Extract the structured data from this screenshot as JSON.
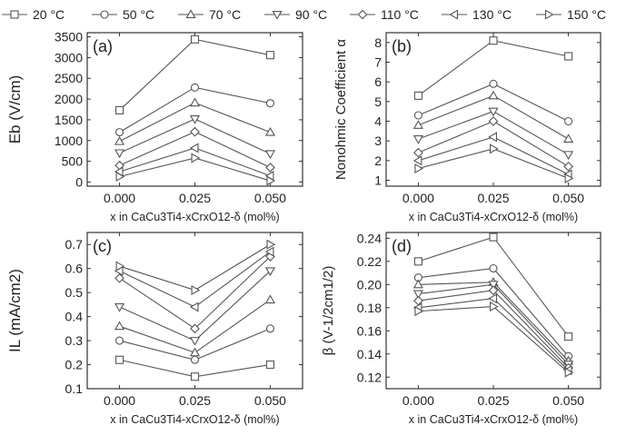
{
  "legend": {
    "entries": [
      {
        "label": "20 °C",
        "marker": "square"
      },
      {
        "label": "50 °C",
        "marker": "circle"
      },
      {
        "label": "70 °C",
        "marker": "triangle-up"
      },
      {
        "label": "90 °C",
        "marker": "triangle-down"
      },
      {
        "label": "110 °C",
        "marker": "diamond"
      },
      {
        "label": "130 °C",
        "marker": "triangle-left"
      },
      {
        "label": "150 °C",
        "marker": "triangle-right"
      }
    ],
    "line_color": "#555555"
  },
  "chart_data": [
    {
      "panel": "(a)",
      "type": "line",
      "x": [
        0.0,
        0.025,
        0.05
      ],
      "xticks": [
        "0.000",
        "0.025",
        "0.050"
      ],
      "xlabel": "x in CaCu3Ti4-xCrxO12-δ (mol%)",
      "ylabel": "Eb (V/cm)",
      "ylim": [
        -100,
        3600
      ],
      "yticks": [
        0,
        500,
        1000,
        1500,
        2000,
        2500,
        3000,
        3500
      ],
      "ytick_labels": [
        "0",
        "500",
        "1000",
        "1500",
        "2000",
        "2500",
        "3000",
        "3500"
      ],
      "series": [
        {
          "name": "20 °C",
          "values": [
            1730,
            3440,
            3060
          ]
        },
        {
          "name": "50 °C",
          "values": [
            1200,
            2280,
            1900
          ]
        },
        {
          "name": "70 °C",
          "values": [
            980,
            1910,
            1200
          ]
        },
        {
          "name": "90 °C",
          "values": [
            700,
            1520,
            680
          ]
        },
        {
          "name": "110 °C",
          "values": [
            400,
            1210,
            350
          ]
        },
        {
          "name": "130 °C",
          "values": [
            250,
            820,
            150
          ]
        },
        {
          "name": "150 °C",
          "values": [
            130,
            580,
            30
          ]
        }
      ]
    },
    {
      "panel": "(b)",
      "type": "line",
      "x": [
        0.0,
        0.025,
        0.05
      ],
      "xticks": [
        "0.000",
        "0.025",
        "0.050"
      ],
      "xlabel": "x in CaCu3Ti4-xCrxO12-δ (mol%)",
      "ylabel": "Nonohmic Coefficient α",
      "ylim": [
        0.7,
        8.5
      ],
      "yticks": [
        1,
        2,
        3,
        4,
        5,
        6,
        7,
        8
      ],
      "ytick_labels": [
        "1",
        "2",
        "3",
        "4",
        "5",
        "6",
        "7",
        "8"
      ],
      "series": [
        {
          "name": "20 °C",
          "values": [
            5.3,
            8.1,
            7.3
          ]
        },
        {
          "name": "50 °C",
          "values": [
            4.3,
            5.9,
            4.0
          ]
        },
        {
          "name": "70 °C",
          "values": [
            3.8,
            5.3,
            3.1
          ]
        },
        {
          "name": "90 °C",
          "values": [
            3.1,
            4.5,
            2.3
          ]
        },
        {
          "name": "110 °C",
          "values": [
            2.4,
            4.0,
            1.7
          ]
        },
        {
          "name": "130 °C",
          "values": [
            2.0,
            3.2,
            1.3
          ]
        },
        {
          "name": "150 °C",
          "values": [
            1.6,
            2.6,
            1.1
          ]
        }
      ]
    },
    {
      "panel": "(c)",
      "type": "line",
      "x": [
        0.0,
        0.025,
        0.05
      ],
      "xticks": [
        "0.000",
        "0.025",
        "0.050"
      ],
      "xlabel": "x in CaCu3Ti4-xCrxO12-δ (mol%)",
      "ylabel": "IL (mA/cm2)",
      "ylim": [
        0.1,
        0.75
      ],
      "yticks": [
        0.1,
        0.2,
        0.3,
        0.4,
        0.5,
        0.6,
        0.7
      ],
      "ytick_labels": [
        "0.1",
        "0.2",
        "0.3",
        "0.4",
        "0.5",
        "0.6",
        "0.7"
      ],
      "series": [
        {
          "name": "20 °C",
          "values": [
            0.22,
            0.15,
            0.2
          ]
        },
        {
          "name": "50 °C",
          "values": [
            0.3,
            0.22,
            0.35
          ]
        },
        {
          "name": "70 °C",
          "values": [
            0.36,
            0.25,
            0.47
          ]
        },
        {
          "name": "90 °C",
          "values": [
            0.44,
            0.3,
            0.59
          ]
        },
        {
          "name": "110 °C",
          "values": [
            0.56,
            0.35,
            0.65
          ]
        },
        {
          "name": "130 °C",
          "values": [
            0.59,
            0.44,
            0.67
          ]
        },
        {
          "name": "150 °C",
          "values": [
            0.61,
            0.51,
            0.7
          ]
        }
      ]
    },
    {
      "panel": "(d)",
      "type": "line",
      "x": [
        0.0,
        0.025,
        0.05
      ],
      "xticks": [
        "0.000",
        "0.025",
        "0.050"
      ],
      "xlabel": "x in CaCu3Ti4-xCrxO12-δ (mol%)",
      "ylabel": "β (V-1/2cm1/2)",
      "ylim": [
        0.11,
        0.245
      ],
      "yticks": [
        0.12,
        0.14,
        0.16,
        0.18,
        0.2,
        0.22,
        0.24
      ],
      "ytick_labels": [
        "0.12",
        "0.14",
        "0.16",
        "0.18",
        "0.20",
        "0.22",
        "0.24"
      ],
      "series": [
        {
          "name": "20 °C",
          "values": [
            0.22,
            0.241,
            0.155
          ]
        },
        {
          "name": "50 °C",
          "values": [
            0.206,
            0.214,
            0.138
          ]
        },
        {
          "name": "70 °C",
          "values": [
            0.2,
            0.202,
            0.134
          ]
        },
        {
          "name": "90 °C",
          "values": [
            0.192,
            0.2,
            0.131
          ]
        },
        {
          "name": "110 °C",
          "values": [
            0.186,
            0.195,
            0.128
          ]
        },
        {
          "name": "130 °C",
          "values": [
            0.18,
            0.188,
            0.126
          ]
        },
        {
          "name": "150 °C",
          "values": [
            0.177,
            0.181,
            0.124
          ]
        }
      ]
    }
  ]
}
